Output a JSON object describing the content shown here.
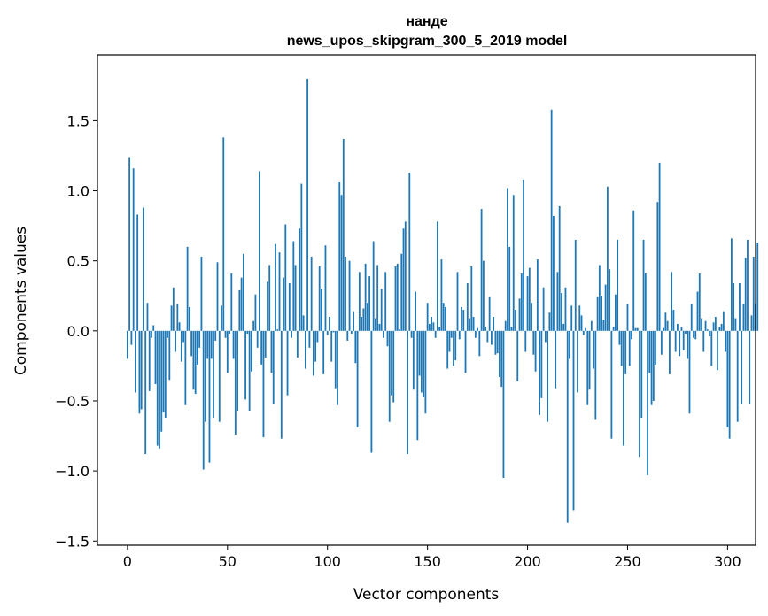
{
  "chart_data": {
    "type": "bar",
    "title": "нанде",
    "subtitle": "news_upos_skipgram_300_5_2019 model",
    "xlabel": "Vector components",
    "ylabel": "Components values",
    "xlim": [
      -15,
      314
    ],
    "ylim": [
      -1.53,
      1.97
    ],
    "xticks": [
      0,
      50,
      100,
      150,
      200,
      250,
      300
    ],
    "xtick_labels": [
      "0",
      "50",
      "100",
      "150",
      "200",
      "250",
      "300"
    ],
    "yticks": [
      -1.5,
      -1.0,
      -0.5,
      0.0,
      0.5,
      1.0,
      1.5
    ],
    "ytick_labels": [
      "−1.5",
      "−1.0",
      "−0.5",
      "0.0",
      "0.5",
      "1.0",
      "1.5"
    ],
    "bar_color": "#1f77b4",
    "grid": false,
    "values": [
      -0.2,
      1.24,
      -0.1,
      1.16,
      -0.44,
      0.83,
      -0.59,
      -0.56,
      0.88,
      -0.88,
      0.2,
      -0.43,
      -0.05,
      0.04,
      -0.38,
      -0.82,
      -0.84,
      -0.72,
      -0.58,
      -0.62,
      -0.05,
      -0.35,
      0.18,
      0.31,
      -0.15,
      0.19,
      0.06,
      -0.22,
      -0.08,
      -0.53,
      0.6,
      0.17,
      -0.18,
      -0.42,
      -0.45,
      -0.24,
      -0.12,
      0.53,
      -0.99,
      -0.65,
      -0.2,
      -0.94,
      -0.2,
      -0.62,
      -0.07,
      0.49,
      -0.65,
      0.18,
      1.38,
      -0.05,
      -0.3,
      -0.02,
      0.41,
      -0.2,
      -0.74,
      -0.57,
      0.29,
      0.38,
      0.55,
      -0.49,
      -0.02,
      -0.57,
      -0.29,
      0.07,
      0.26,
      -0.12,
      1.14,
      -0.24,
      -0.76,
      -0.19,
      0.35,
      0.47,
      -0.3,
      -0.52,
      0.62,
      0.01,
      0.56,
      -0.77,
      0.38,
      0.76,
      -0.46,
      0.34,
      -0.05,
      0.64,
      0.47,
      -0.19,
      0.73,
      1.05,
      0.11,
      -0.27,
      1.8,
      -0.12,
      0.53,
      -0.32,
      -0.22,
      -0.08,
      0.46,
      0.3,
      -0.31,
      0.61,
      -0.03,
      0.1,
      -0.22,
      -0.01,
      -0.41,
      -0.53,
      1.06,
      0.97,
      1.37,
      0.53,
      -0.07,
      0.5,
      -0.02,
      0.14,
      -0.23,
      -0.69,
      0.42,
      0.1,
      0.16,
      0.48,
      0.2,
      0.39,
      -0.87,
      0.64,
      0.09,
      0.47,
      0.05,
      0.3,
      -0.05,
      0.42,
      -0.11,
      -0.65,
      -0.46,
      -0.51,
      0.46,
      0.48,
      0.01,
      0.55,
      0.73,
      0.78,
      -0.88,
      1.13,
      -0.05,
      -0.42,
      0.28,
      -0.78,
      -0.32,
      -0.44,
      -0.47,
      -0.59,
      0.2,
      0.05,
      0.1,
      0.06,
      -0.05,
      0.78,
      0.03,
      0.51,
      0.2,
      0.17,
      -0.27,
      -0.15,
      -0.05,
      -0.25,
      -0.21,
      0.42,
      -0.06,
      0.17,
      0.15,
      -0.3,
      0.34,
      0.09,
      0.46,
      0.1,
      -0.05,
      0.02,
      -0.18,
      0.87,
      0.5,
      0.03,
      -0.08,
      0.24,
      -0.1,
      0.1,
      -0.17,
      -0.16,
      -0.33,
      -0.4,
      -1.05,
      0.07,
      1.02,
      0.6,
      0.03,
      0.97,
      0.15,
      -0.36,
      0.23,
      0.41,
      1.08,
      -0.15,
      0.39,
      0.45,
      0.2,
      -0.17,
      -0.29,
      0.51,
      -0.6,
      -0.48,
      0.31,
      -0.08,
      -0.65,
      0.13,
      1.58,
      0.82,
      -0.41,
      0.42,
      0.89,
      0.27,
      0.05,
      0.31,
      -1.37,
      -0.2,
      0.18,
      -1.28,
      0.65,
      -0.44,
      0.18,
      0.11,
      -0.03,
      0.02,
      -0.53,
      -0.42,
      0.07,
      -0.27,
      -0.63,
      0.24,
      0.47,
      0.25,
      0.08,
      0.33,
      1.03,
      0.44,
      -0.77,
      0.03,
      0.26,
      0.65,
      -0.1,
      -0.25,
      -0.82,
      -0.31,
      0.19,
      -0.25,
      -0.06,
      0.86,
      0.02,
      0.02,
      -0.9,
      -0.62,
      0.65,
      0.41,
      -1.03,
      -0.3,
      -0.53,
      -0.5,
      -0.24,
      0.92,
      1.2,
      -0.17,
      0.02,
      0.13,
      0.07,
      -0.31,
      0.42,
      0.15,
      -0.15,
      0.05,
      -0.18,
      0.03,
      -0.14,
      -0.02,
      -0.2,
      -0.59,
      0.19,
      -0.05,
      -0.06,
      0.28,
      0.41,
      0.09,
      -0.15,
      0.07,
      0.01,
      -0.04,
      -0.25,
      0.06,
      0.1,
      -0.28,
      0.03,
      0.05,
      0.14,
      -0.15,
      -0.69,
      -0.77,
      0.66,
      0.34,
      0.09,
      -0.65,
      0.34,
      -0.52,
      0.19,
      0.52,
      0.65,
      -0.52,
      0.11,
      0.53,
      0.19,
      0.63
    ]
  }
}
